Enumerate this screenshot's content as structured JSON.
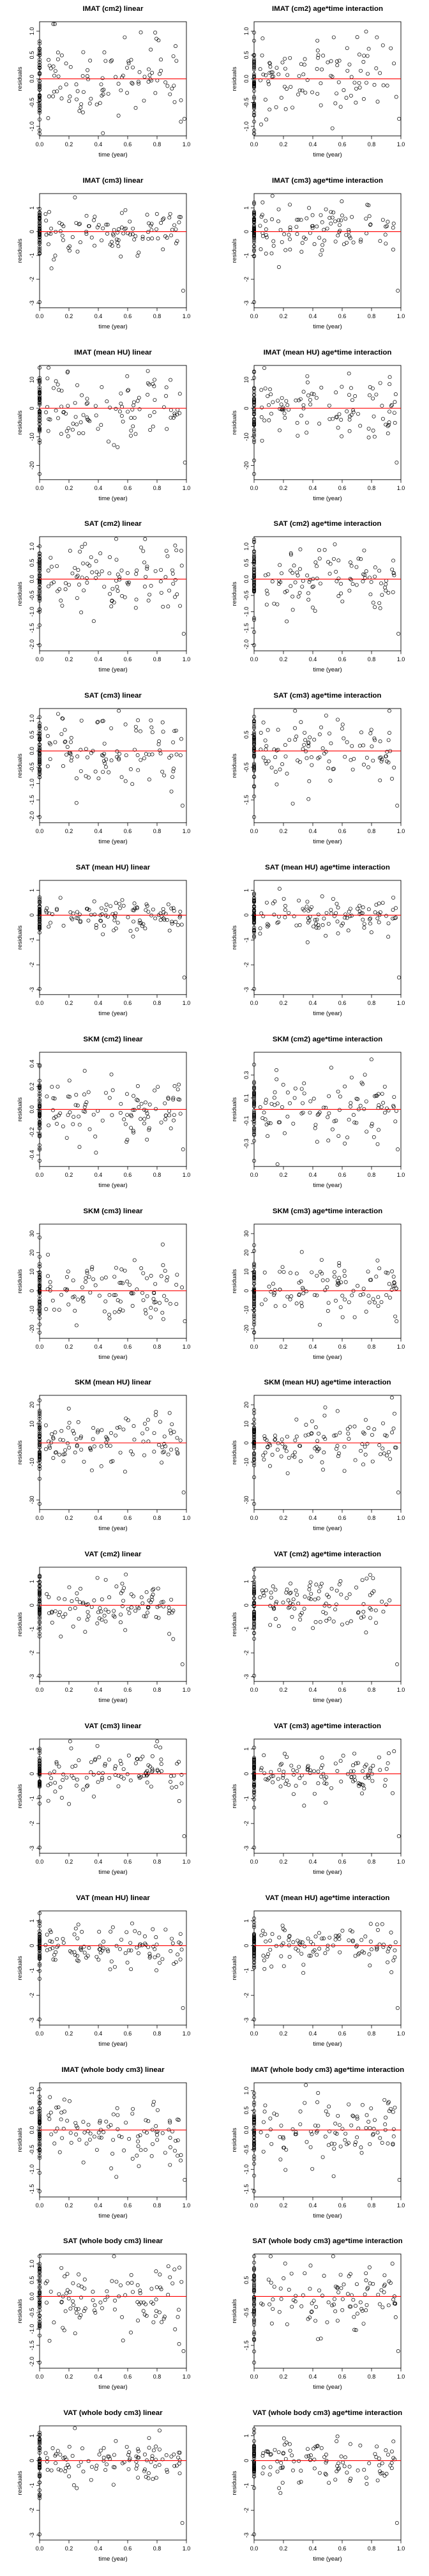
{
  "figure": {
    "rows": 15,
    "cols": 2,
    "point_color": "#000000",
    "zero_line_color": "#ff0000",
    "marker": "open-circle"
  },
  "chart_data": [
    {
      "type": "scatter",
      "title": "IMAT (cm2) linear",
      "xlabel": "time (year)",
      "ylabel": "residuals",
      "xlim": [
        0,
        1
      ],
      "ylim": [
        -1.2,
        1.2
      ],
      "xticks": [
        0.0,
        0.2,
        0.4,
        0.6,
        0.8,
        1.0
      ],
      "yticks": [
        -1.0,
        -0.5,
        0.0,
        0.5,
        1.0
      ],
      "grid": false,
      "spread": 0.45,
      "seed": 11,
      "n": 150
    },
    {
      "type": "scatter",
      "title": "IMAT (cm2) age*time interaction",
      "xlabel": "time (year)",
      "ylabel": "residuals",
      "xlim": [
        0,
        1
      ],
      "ylim": [
        -1.2,
        1.2
      ],
      "xticks": [
        0.0,
        0.2,
        0.4,
        0.6,
        0.8,
        1.0
      ],
      "yticks": [
        -1.0,
        -0.5,
        0.0,
        0.5,
        1.0
      ],
      "grid": false,
      "spread": 0.45,
      "seed": 12,
      "n": 150
    },
    {
      "type": "scatter",
      "title": "IMAT (cm3) linear",
      "xlabel": "time (year)",
      "ylabel": "residuals",
      "xlim": [
        0,
        1
      ],
      "ylim": [
        -3.2,
        1.6
      ],
      "xticks": [
        0.0,
        0.2,
        0.4,
        0.6,
        0.8,
        1.0
      ],
      "yticks": [
        -3,
        -2,
        -1,
        0,
        1
      ],
      "grid": false,
      "spread": 0.5,
      "seed": 21,
      "n": 150
    },
    {
      "type": "scatter",
      "title": "IMAT (cm3) age*time interaction",
      "xlabel": "time (year)",
      "ylabel": "residuals",
      "xlim": [
        0,
        1
      ],
      "ylim": [
        -3.2,
        1.6
      ],
      "xticks": [
        0.0,
        0.2,
        0.4,
        0.6,
        0.8,
        1.0
      ],
      "yticks": [
        -3,
        -2,
        -1,
        0,
        1
      ],
      "grid": false,
      "spread": 0.5,
      "seed": 22,
      "n": 150
    },
    {
      "type": "scatter",
      "title": "IMAT (mean HU) linear",
      "xlabel": "time (year)",
      "ylabel": "residuals",
      "xlim": [
        0,
        1
      ],
      "ylim": [
        -25,
        15
      ],
      "xticks": [
        0.0,
        0.2,
        0.4,
        0.6,
        0.8,
        1.0
      ],
      "yticks": [
        -20,
        -10,
        0,
        10
      ],
      "grid": false,
      "spread": 6,
      "seed": 31,
      "n": 150
    },
    {
      "type": "scatter",
      "title": "IMAT (mean HU) age*time interaction",
      "xlabel": "time (year)",
      "ylabel": "residuals",
      "xlim": [
        0,
        1
      ],
      "ylim": [
        -25,
        15
      ],
      "xticks": [
        0.0,
        0.2,
        0.4,
        0.6,
        0.8,
        1.0
      ],
      "yticks": [
        -20,
        -10,
        0,
        10
      ],
      "grid": false,
      "spread": 6,
      "seed": 32,
      "n": 150
    },
    {
      "type": "scatter",
      "title": "SAT (cm2) linear",
      "xlabel": "time (year)",
      "ylabel": "residuals",
      "xlim": [
        0,
        1
      ],
      "ylim": [
        -2.2,
        1.3
      ],
      "xticks": [
        0.0,
        0.2,
        0.4,
        0.6,
        0.8,
        1.0
      ],
      "yticks": [
        -2.0,
        -1.5,
        -1.0,
        -0.5,
        0.0,
        0.5,
        1.0
      ],
      "grid": false,
      "spread": 0.55,
      "seed": 41,
      "n": 150
    },
    {
      "type": "scatter",
      "title": "SAT (cm2) age*time interaction",
      "xlabel": "time (year)",
      "ylabel": "residuals",
      "xlim": [
        0,
        1
      ],
      "ylim": [
        -2.2,
        1.3
      ],
      "xticks": [
        0.0,
        0.2,
        0.4,
        0.6,
        0.8,
        1.0
      ],
      "yticks": [
        -2.0,
        -1.5,
        -1.0,
        -0.5,
        0.0,
        0.5,
        1.0
      ],
      "grid": false,
      "spread": 0.55,
      "seed": 42,
      "n": 150
    },
    {
      "type": "scatter",
      "title": "SAT (cm3) linear",
      "xlabel": "time (year)",
      "ylabel": "residuals",
      "xlim": [
        0,
        1
      ],
      "ylim": [
        -2.2,
        1.3
      ],
      "xticks": [
        0.0,
        0.2,
        0.4,
        0.6,
        0.8,
        1.0
      ],
      "yticks": [
        -2.0,
        -1.5,
        -1.0,
        -0.5,
        0.0,
        0.5,
        1.0
      ],
      "grid": false,
      "spread": 0.5,
      "seed": 51,
      "n": 150
    },
    {
      "type": "scatter",
      "title": "SAT (cm3) age*time interaction",
      "xlabel": "time (year)",
      "ylabel": "residuals",
      "xlim": [
        0,
        1
      ],
      "ylim": [
        -2.2,
        1.3
      ],
      "xticks": [
        0.0,
        0.2,
        0.4,
        0.6,
        0.8,
        1.0
      ],
      "yticks": [
        -1.5,
        -0.5,
        0.5
      ],
      "grid": false,
      "spread": 0.5,
      "seed": 52,
      "n": 150
    },
    {
      "type": "scatter",
      "title": "SAT (mean HU) linear",
      "xlabel": "time (year)",
      "ylabel": "residuals",
      "xlim": [
        0,
        1
      ],
      "ylim": [
        -3.2,
        1.4
      ],
      "xticks": [
        0.0,
        0.2,
        0.4,
        0.6,
        0.8,
        1.0
      ],
      "yticks": [
        -3,
        -2,
        -1,
        0,
        1
      ],
      "grid": false,
      "spread": 0.35,
      "seed": 61,
      "n": 150
    },
    {
      "type": "scatter",
      "title": "SAT (mean HU) age*time interaction",
      "xlabel": "time (year)",
      "ylabel": "residuals",
      "xlim": [
        0,
        1
      ],
      "ylim": [
        -3.2,
        1.4
      ],
      "xticks": [
        0.0,
        0.2,
        0.4,
        0.6,
        0.8,
        1.0
      ],
      "yticks": [
        -3,
        -2,
        -1,
        0,
        1
      ],
      "grid": false,
      "spread": 0.35,
      "seed": 62,
      "n": 150
    },
    {
      "type": "scatter",
      "title": "SKM (cm2) linear",
      "xlabel": "time (year)",
      "ylabel": "residuals",
      "xlim": [
        0,
        1
      ],
      "ylim": [
        -0.5,
        0.5
      ],
      "xticks": [
        0.0,
        0.2,
        0.4,
        0.6,
        0.8,
        1.0
      ],
      "yticks": [
        -0.4,
        -0.2,
        0.0,
        0.2,
        0.4
      ],
      "grid": false,
      "spread": 0.15,
      "seed": 71,
      "n": 150
    },
    {
      "type": "scatter",
      "title": "SKM (cm2) age*time interaction",
      "xlabel": "time (year)",
      "ylabel": "residuals",
      "xlim": [
        0,
        1
      ],
      "ylim": [
        -0.5,
        0.5
      ],
      "xticks": [
        0.0,
        0.2,
        0.4,
        0.6,
        0.8,
        1.0
      ],
      "yticks": [
        -0.3,
        -0.1,
        0.1,
        0.3
      ],
      "grid": false,
      "spread": 0.15,
      "seed": 72,
      "n": 150
    },
    {
      "type": "scatter",
      "title": "SKM (cm3) linear",
      "xlabel": "time (year)",
      "ylabel": "residuals",
      "xlim": [
        0,
        1
      ],
      "ylim": [
        -25,
        35
      ],
      "xticks": [
        0.0,
        0.2,
        0.4,
        0.6,
        0.8,
        1.0
      ],
      "yticks": [
        -20,
        -10,
        0,
        10,
        20,
        30
      ],
      "grid": false,
      "spread": 8,
      "seed": 81,
      "n": 150
    },
    {
      "type": "scatter",
      "title": "SKM (cm3) age*time interaction",
      "xlabel": "time (year)",
      "ylabel": "residuals",
      "xlim": [
        0,
        1
      ],
      "ylim": [
        -25,
        35
      ],
      "xticks": [
        0.0,
        0.2,
        0.4,
        0.6,
        0.8,
        1.0
      ],
      "yticks": [
        -20,
        -10,
        0,
        10,
        20,
        30
      ],
      "grid": false,
      "spread": 8,
      "seed": 82,
      "n": 150
    },
    {
      "type": "scatter",
      "title": "SKM (mean HU) linear",
      "xlabel": "time (year)",
      "ylabel": "residuals",
      "xlim": [
        0,
        1
      ],
      "ylim": [
        -35,
        25
      ],
      "xticks": [
        0.0,
        0.2,
        0.4,
        0.6,
        0.8,
        1.0
      ],
      "yticks": [
        -30,
        -10,
        10,
        20
      ],
      "grid": false,
      "spread": 7,
      "seed": 91,
      "n": 150
    },
    {
      "type": "scatter",
      "title": "SKM (mean HU) age*time interaction",
      "xlabel": "time (year)",
      "ylabel": "residuals",
      "xlim": [
        0,
        1
      ],
      "ylim": [
        -35,
        25
      ],
      "xticks": [
        0.0,
        0.2,
        0.4,
        0.6,
        0.8,
        1.0
      ],
      "yticks": [
        -30,
        -10,
        0,
        10,
        20
      ],
      "grid": false,
      "spread": 7,
      "seed": 92,
      "n": 150
    },
    {
      "type": "scatter",
      "title": "VAT (cm2) linear",
      "xlabel": "time (year)",
      "ylabel": "residuals",
      "xlim": [
        0,
        1
      ],
      "ylim": [
        -3.2,
        1.6
      ],
      "xticks": [
        0.0,
        0.2,
        0.4,
        0.6,
        0.8,
        1.0
      ],
      "yticks": [
        -3,
        -2,
        -1,
        0,
        1
      ],
      "grid": false,
      "spread": 0.55,
      "seed": 101,
      "n": 150
    },
    {
      "type": "scatter",
      "title": "VAT (cm2) age*time interaction",
      "xlabel": "time (year)",
      "ylabel": "residuals",
      "xlim": [
        0,
        1
      ],
      "ylim": [
        -3.2,
        1.6
      ],
      "xticks": [
        0.0,
        0.2,
        0.4,
        0.6,
        0.8,
        1.0
      ],
      "yticks": [
        -3,
        -2,
        -1,
        0,
        1
      ],
      "grid": false,
      "spread": 0.55,
      "seed": 102,
      "n": 150
    },
    {
      "type": "scatter",
      "title": "VAT (cm3) linear",
      "xlabel": "time (year)",
      "ylabel": "residuals",
      "xlim": [
        0,
        1
      ],
      "ylim": [
        -3.2,
        1.4
      ],
      "xticks": [
        0.0,
        0.2,
        0.4,
        0.6,
        0.8,
        1.0
      ],
      "yticks": [
        -3,
        -2,
        -1,
        0,
        1
      ],
      "grid": false,
      "spread": 0.45,
      "seed": 111,
      "n": 150
    },
    {
      "type": "scatter",
      "title": "VAT (cm3) age*time interaction",
      "xlabel": "time (year)",
      "ylabel": "residuals",
      "xlim": [
        0,
        1
      ],
      "ylim": [
        -3.2,
        1.4
      ],
      "xticks": [
        0.0,
        0.2,
        0.4,
        0.6,
        0.8,
        1.0
      ],
      "yticks": [
        -3,
        -2,
        -1,
        0,
        1
      ],
      "grid": false,
      "spread": 0.45,
      "seed": 112,
      "n": 150
    },
    {
      "type": "scatter",
      "title": "VAT (mean HU) linear",
      "xlabel": "time (year)",
      "ylabel": "residuals",
      "xlim": [
        0,
        1
      ],
      "ylim": [
        -3.2,
        1.4
      ],
      "xticks": [
        0.0,
        0.2,
        0.4,
        0.6,
        0.8,
        1.0
      ],
      "yticks": [
        -3,
        -2,
        -1,
        0,
        1
      ],
      "grid": false,
      "spread": 0.4,
      "seed": 121,
      "n": 150
    },
    {
      "type": "scatter",
      "title": "VAT (mean HU) age*time interaction",
      "xlabel": "time (year)",
      "ylabel": "residuals",
      "xlim": [
        0,
        1
      ],
      "ylim": [
        -3.2,
        1.4
      ],
      "xticks": [
        0.0,
        0.2,
        0.4,
        0.6,
        0.8,
        1.0
      ],
      "yticks": [
        -3,
        -2,
        -1,
        0,
        1
      ],
      "grid": false,
      "spread": 0.4,
      "seed": 122,
      "n": 150
    },
    {
      "type": "scatter",
      "title": "IMAT (whole body cm3) linear",
      "xlabel": "time (year)",
      "ylabel": "residuals",
      "xlim": [
        0,
        1
      ],
      "ylim": [
        -1.7,
        1.2
      ],
      "xticks": [
        0.0,
        0.2,
        0.4,
        0.6,
        0.8,
        1.0
      ],
      "yticks": [
        -1.5,
        -1.0,
        -0.5,
        0.0,
        0.5,
        1.0
      ],
      "grid": false,
      "spread": 0.4,
      "seed": 131,
      "n": 150
    },
    {
      "type": "scatter",
      "title": "IMAT (whole body cm3) age*time interaction",
      "xlabel": "time (year)",
      "ylabel": "residuals",
      "xlim": [
        0,
        1
      ],
      "ylim": [
        -1.7,
        1.2
      ],
      "xticks": [
        0.0,
        0.2,
        0.4,
        0.6,
        0.8,
        1.0
      ],
      "yticks": [
        -1.5,
        -1.0,
        -0.5,
        0.0,
        0.5,
        1.0
      ],
      "grid": false,
      "spread": 0.4,
      "seed": 132,
      "n": 150
    },
    {
      "type": "scatter",
      "title": "SAT (whole body cm3) linear",
      "xlabel": "time (year)",
      "ylabel": "residuals",
      "xlim": [
        0,
        1
      ],
      "ylim": [
        -2.2,
        1.3
      ],
      "xticks": [
        0.0,
        0.2,
        0.4,
        0.6,
        0.8,
        1.0
      ],
      "yticks": [
        -2.0,
        -1.5,
        -1.0,
        -0.5,
        0.0,
        0.5,
        1.0
      ],
      "grid": false,
      "spread": 0.55,
      "seed": 141,
      "n": 150
    },
    {
      "type": "scatter",
      "title": "SAT (whole body cm3) age*time interaction",
      "xlabel": "time (year)",
      "ylabel": "residuals",
      "xlim": [
        0,
        1
      ],
      "ylim": [
        -2.2,
        1.3
      ],
      "xticks": [
        0.0,
        0.2,
        0.4,
        0.6,
        0.8,
        1.0
      ],
      "yticks": [
        -1.5,
        -0.5,
        0.5
      ],
      "grid": false,
      "spread": 0.55,
      "seed": 142,
      "n": 150
    },
    {
      "type": "scatter",
      "title": "VAT (whole body cm3) linear",
      "xlabel": "time (year)",
      "ylabel": "residuals",
      "xlim": [
        0,
        1
      ],
      "ylim": [
        -3.2,
        1.4
      ],
      "xticks": [
        0.0,
        0.2,
        0.4,
        0.6,
        0.8,
        1.0
      ],
      "yticks": [
        -3,
        -2,
        -1,
        0,
        1
      ],
      "grid": false,
      "spread": 0.5,
      "seed": 151,
      "n": 150
    },
    {
      "type": "scatter",
      "title": "VAT (whole body cm3) age*time interaction",
      "xlabel": "time (year)",
      "ylabel": "residuals",
      "xlim": [
        0,
        1
      ],
      "ylim": [
        -3.2,
        1.4
      ],
      "xticks": [
        0.0,
        0.2,
        0.4,
        0.6,
        0.8,
        1.0
      ],
      "yticks": [
        -3,
        -2,
        -1,
        0,
        1
      ],
      "grid": false,
      "spread": 0.5,
      "seed": 152,
      "n": 150
    }
  ]
}
